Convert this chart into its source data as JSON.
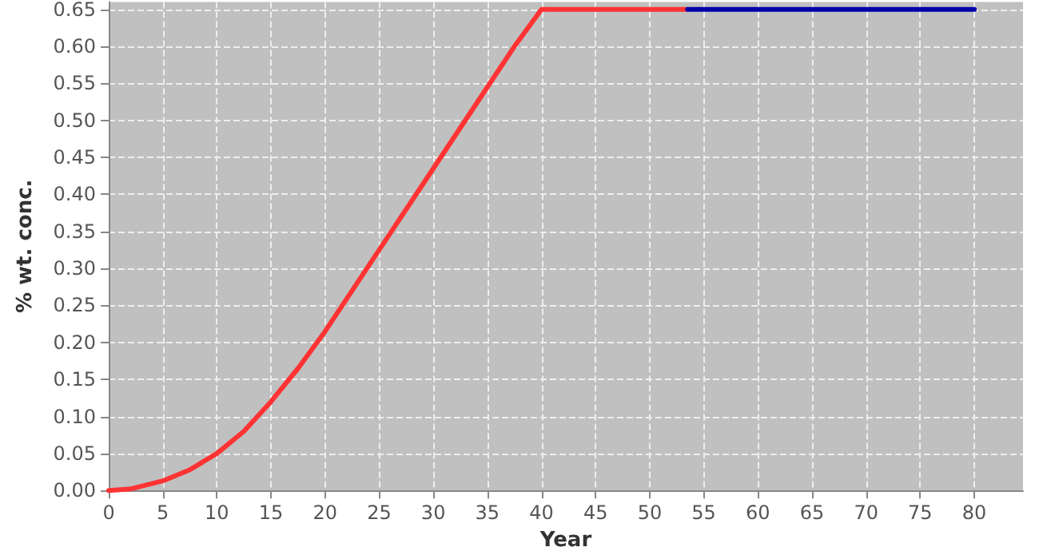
{
  "chart_data": {
    "type": "line",
    "xlabel": "Year",
    "ylabel": "% wt. conc.",
    "xlim": [
      0,
      84.5
    ],
    "ylim": [
      0,
      0.66
    ],
    "xticks": [
      0,
      5,
      10,
      15,
      20,
      25,
      30,
      35,
      40,
      45,
      50,
      55,
      60,
      65,
      70,
      75,
      80
    ],
    "yticks": [
      {
        "value": 0,
        "label": "0.00"
      },
      {
        "value": 0.05,
        "label": "0.05"
      },
      {
        "value": 0.1,
        "label": "0.10"
      },
      {
        "value": 0.15,
        "label": "0.15"
      },
      {
        "value": 0.2,
        "label": "0.20"
      },
      {
        "value": 0.25,
        "label": "0.25"
      },
      {
        "value": 0.3,
        "label": "0.30"
      },
      {
        "value": 0.35,
        "label": "0.35"
      },
      {
        "value": 0.4,
        "label": "0.40"
      },
      {
        "value": 0.45,
        "label": "0.45"
      },
      {
        "value": 0.5,
        "label": "0.50"
      },
      {
        "value": 0.55,
        "label": "0.55"
      },
      {
        "value": 0.6,
        "label": "0.60"
      },
      {
        "value": 0.65,
        "label": "0.65"
      }
    ],
    "grid": true,
    "marker": "none",
    "line_style": "solid",
    "series": [
      {
        "color": "#ff3333",
        "x": [
          0,
          2,
          5,
          7.5,
          10,
          12.5,
          15,
          17.5,
          20,
          22.5,
          25,
          27.5,
          30,
          32.5,
          35,
          37.5,
          40,
          53.5
        ],
        "values": [
          0,
          0.002,
          0.013,
          0.028,
          0.05,
          0.08,
          0.12,
          0.165,
          0.215,
          0.27,
          0.325,
          0.38,
          0.435,
          0.49,
          0.545,
          0.6,
          0.65,
          0.65
        ]
      },
      {
        "color": "#0000aa",
        "x": [
          53.5,
          80
        ],
        "values": [
          0.65,
          0.65
        ]
      }
    ]
  }
}
